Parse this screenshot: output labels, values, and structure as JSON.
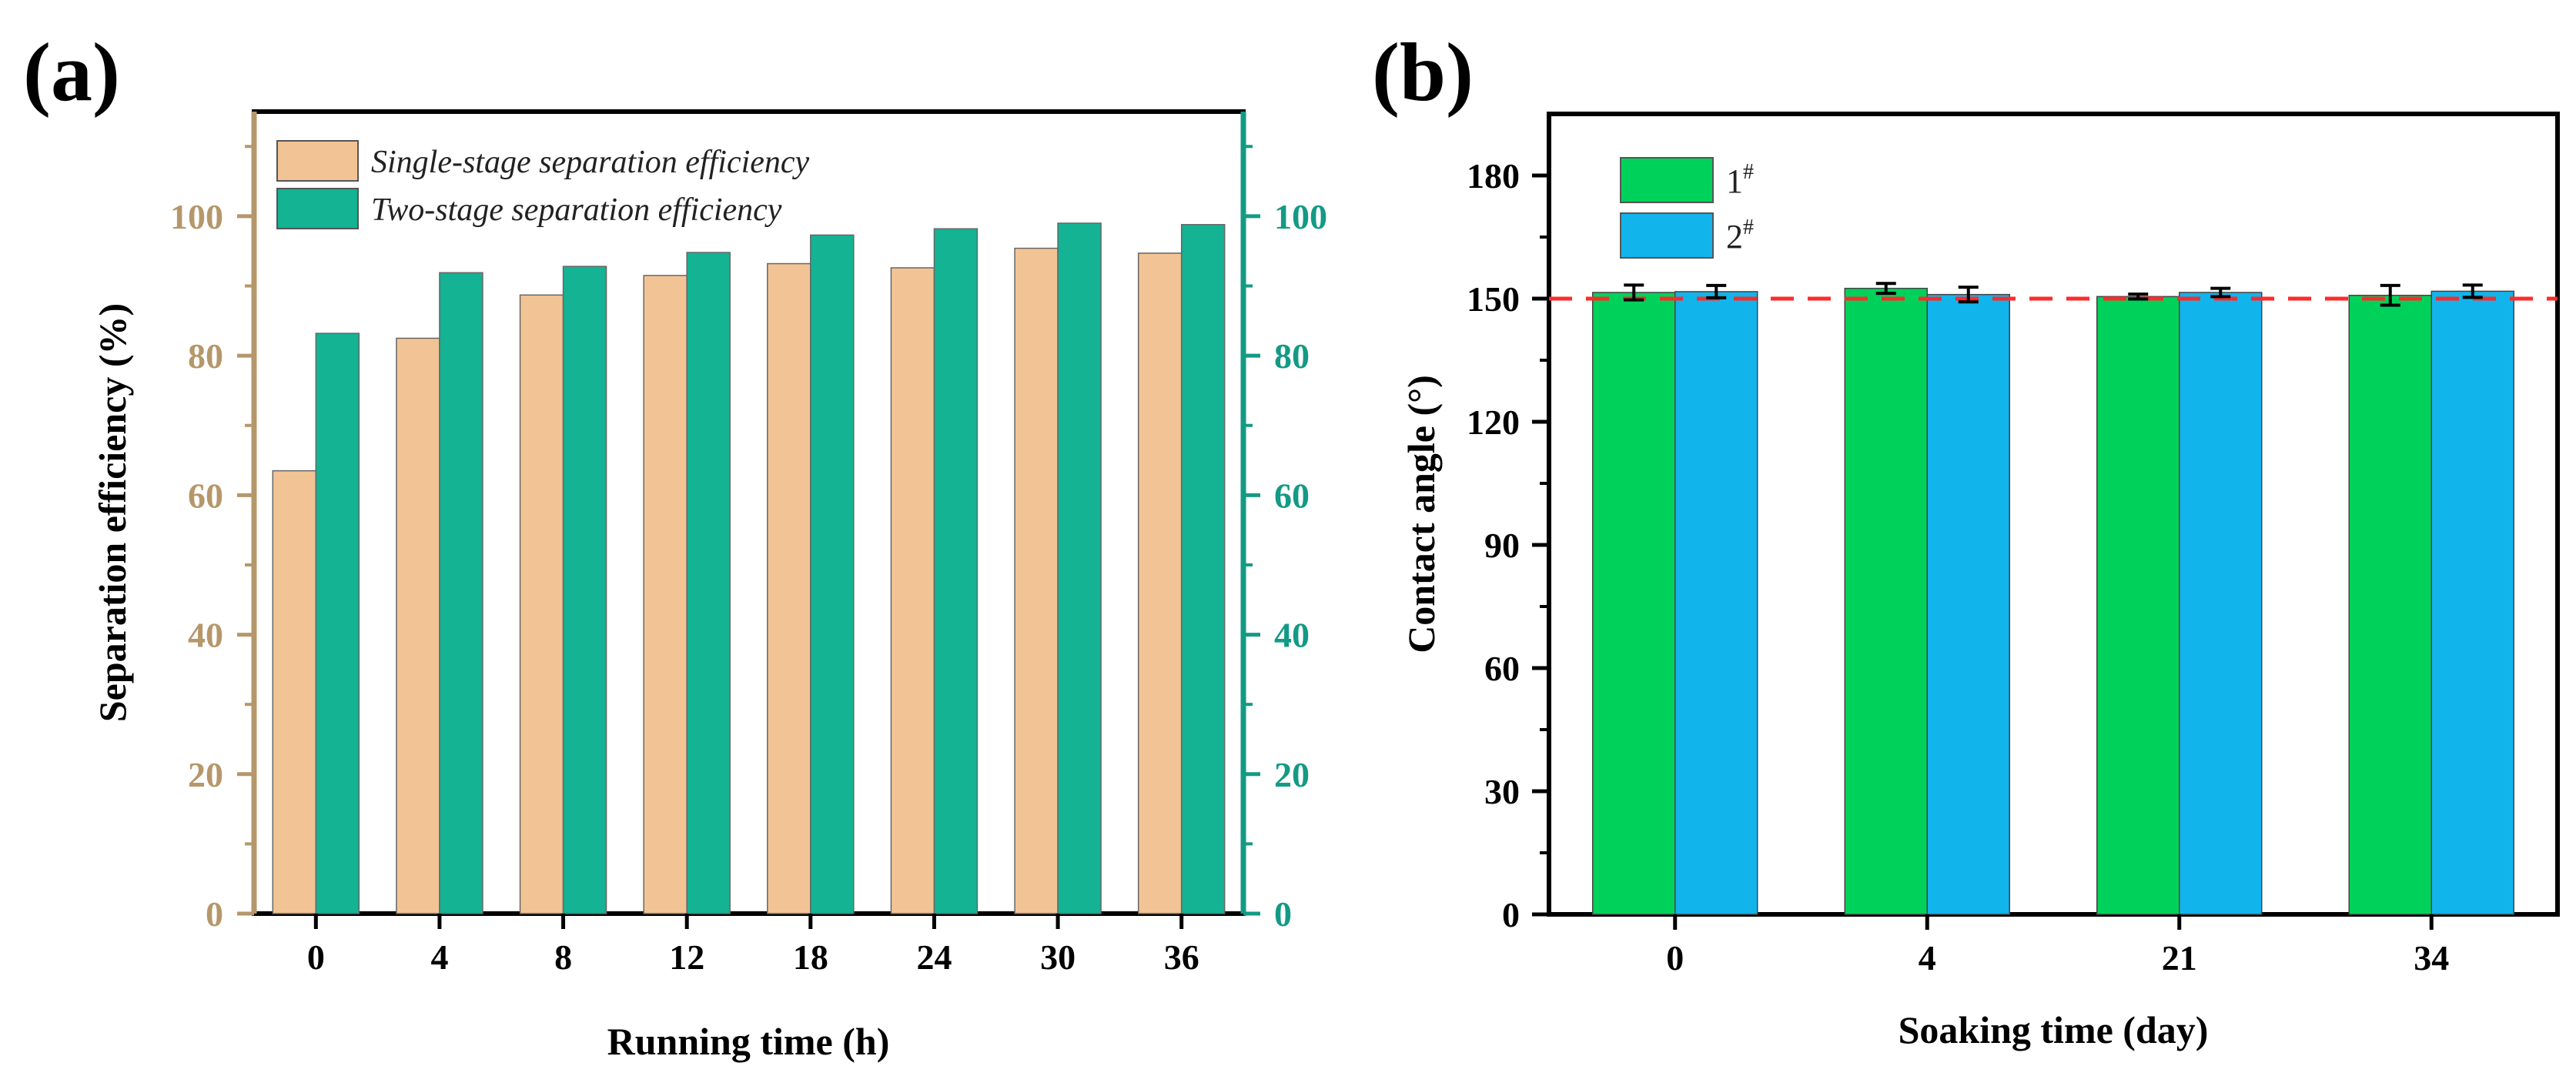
{
  "chart_data": [
    {
      "panel_label": "(a)",
      "type": "bar",
      "title": "",
      "xlabel": "Running time (h)",
      "ylabel": "Separation efficiency (%)",
      "categories": [
        "0",
        "4",
        "8",
        "12",
        "18",
        "24",
        "30",
        "36"
      ],
      "ylim": [
        0,
        115
      ],
      "yticks": [
        "0",
        "20",
        "40",
        "60",
        "80",
        "100"
      ],
      "y2ticks": [
        "0",
        "20",
        "40",
        "60",
        "80",
        "100"
      ],
      "legend_position": "top-left",
      "series": [
        {
          "name": "Single-stage separation efficiency",
          "color": "#f2c495",
          "values": [
            63.5,
            82.5,
            88.7,
            91.5,
            93.2,
            92.6,
            95.4,
            94.7
          ]
        },
        {
          "name": "Two-stage separation efficiency",
          "color": "#13b393",
          "values": [
            83.2,
            91.9,
            92.8,
            94.8,
            97.3,
            98.2,
            99.0,
            98.8
          ]
        }
      ],
      "left_axis_color": "#b5976a",
      "right_axis_color": "#139a85"
    },
    {
      "panel_label": "(b)",
      "type": "bar",
      "title": "",
      "xlabel": "Soaking time (day)",
      "ylabel": "Contact angle (°)",
      "categories": [
        "0",
        "4",
        "21",
        "34"
      ],
      "ylim": [
        0,
        195
      ],
      "yticks": [
        "0",
        "30",
        "60",
        "90",
        "120",
        "150",
        "180"
      ],
      "legend_position": "top-left",
      "reference_line": 150,
      "reference_color": "#ff2a2a",
      "series": [
        {
          "name": "1",
          "superscript": "#",
          "color": "#00d15a",
          "values": [
            151.5,
            152.5,
            150.5,
            150.8
          ],
          "errors": [
            1.8,
            1.2,
            0.6,
            2.4
          ]
        },
        {
          "name": "2",
          "superscript": "#",
          "color": "#12b4ec",
          "values": [
            151.7,
            151.0,
            151.5,
            151.8
          ],
          "errors": [
            1.5,
            1.8,
            1.0,
            1.5
          ]
        }
      ]
    }
  ]
}
